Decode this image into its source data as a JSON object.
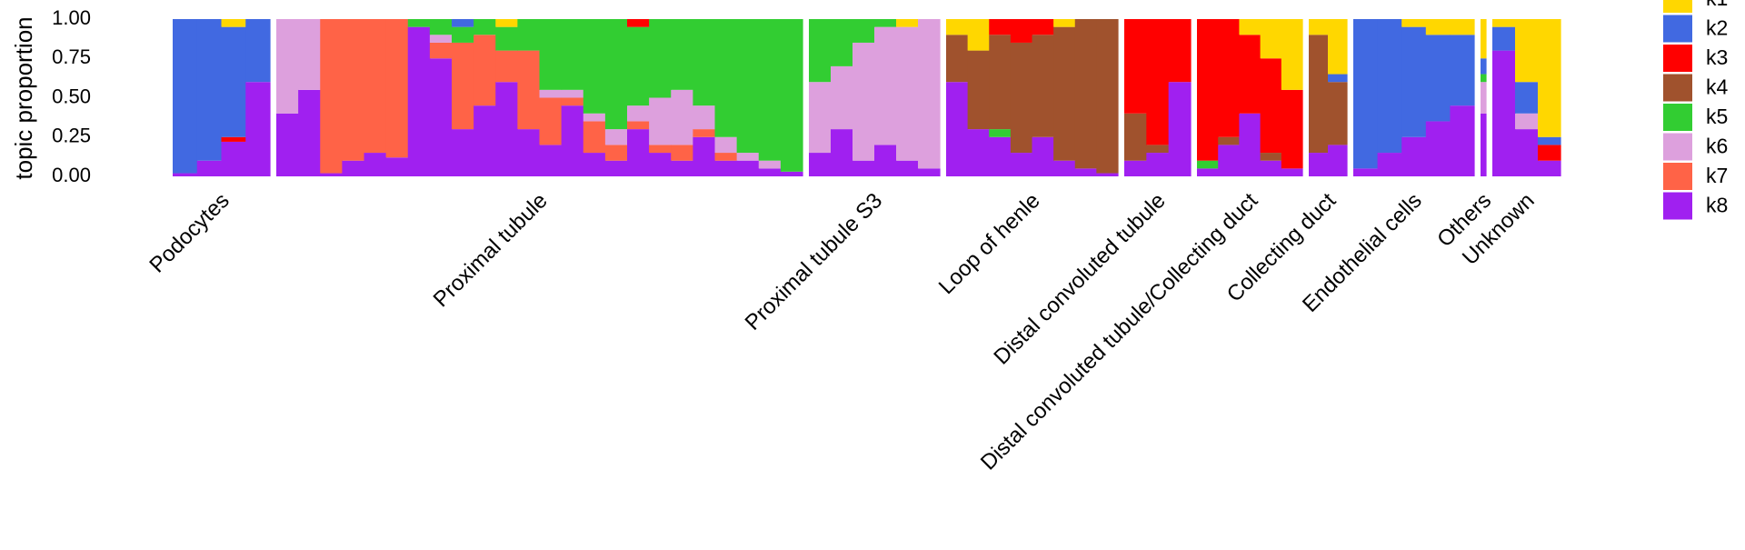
{
  "chart_data": {
    "type": "structure",
    "ylabel": "topic proportion",
    "ylim": [
      0,
      1
    ],
    "yticks": [
      {
        "value": 0,
        "label": "0.00"
      },
      {
        "value": 0.25,
        "label": "0.25"
      },
      {
        "value": 0.5,
        "label": "0.50"
      },
      {
        "value": 0.75,
        "label": "0.75"
      },
      {
        "value": 1,
        "label": "1.00"
      }
    ],
    "series": [
      {
        "name": "k1",
        "color": "#FFD700"
      },
      {
        "name": "k2",
        "color": "#4169E1"
      },
      {
        "name": "k3",
        "color": "#FF0000"
      },
      {
        "name": "k4",
        "color": "#A0522D"
      },
      {
        "name": "k5",
        "color": "#32CD32"
      },
      {
        "name": "k6",
        "color": "#DDA0DD"
      },
      {
        "name": "k7",
        "color": "#FF6347"
      },
      {
        "name": "k8",
        "color": "#A020F0"
      }
    ],
    "groups": [
      {
        "label": "Podocytes",
        "values": [
          [
            0,
            0.98,
            0,
            0,
            0,
            0,
            0,
            0.02
          ],
          [
            0,
            0.9,
            0,
            0,
            0,
            0,
            0,
            0.1
          ],
          [
            0.05,
            0.7,
            0.03,
            0,
            0,
            0,
            0,
            0.22
          ],
          [
            0,
            0.4,
            0,
            0,
            0,
            0,
            0,
            0.6
          ]
        ]
      },
      {
        "label": "Proximal tubule",
        "values": [
          [
            0,
            0,
            0,
            0,
            0,
            0.6,
            0,
            0.4
          ],
          [
            0,
            0,
            0,
            0,
            0,
            0.45,
            0,
            0.55
          ],
          [
            0,
            0,
            0,
            0,
            0,
            0,
            0.98,
            0.02
          ],
          [
            0,
            0,
            0,
            0,
            0,
            0,
            0.9,
            0.1
          ],
          [
            0,
            0,
            0,
            0,
            0,
            0,
            0.85,
            0.15
          ],
          [
            0,
            0,
            0,
            0,
            0,
            0,
            0.88,
            0.12
          ],
          [
            0,
            0,
            0,
            0,
            0.05,
            0,
            0,
            0.95
          ],
          [
            0,
            0,
            0,
            0,
            0.1,
            0.05,
            0.1,
            0.75
          ],
          [
            0,
            0.05,
            0,
            0,
            0.1,
            0,
            0.55,
            0.3
          ],
          [
            0,
            0,
            0,
            0,
            0.1,
            0,
            0.45,
            0.45
          ],
          [
            0.05,
            0,
            0,
            0,
            0.15,
            0,
            0.2,
            0.6
          ],
          [
            0,
            0,
            0,
            0,
            0.2,
            0,
            0.5,
            0.3
          ],
          [
            0,
            0,
            0,
            0,
            0.45,
            0.05,
            0.3,
            0.2
          ],
          [
            0,
            0,
            0,
            0,
            0.45,
            0.05,
            0.05,
            0.45
          ],
          [
            0,
            0,
            0,
            0,
            0.6,
            0.05,
            0.2,
            0.15
          ],
          [
            0,
            0,
            0,
            0,
            0.7,
            0.1,
            0.1,
            0.1
          ],
          [
            0,
            0,
            0.05,
            0,
            0.5,
            0.1,
            0.05,
            0.3
          ],
          [
            0,
            0,
            0,
            0,
            0.5,
            0.3,
            0.05,
            0.15
          ],
          [
            0,
            0,
            0,
            0,
            0.45,
            0.35,
            0.1,
            0.1
          ],
          [
            0,
            0,
            0,
            0,
            0.55,
            0.15,
            0.05,
            0.25
          ],
          [
            0,
            0,
            0,
            0,
            0.75,
            0.1,
            0.05,
            0.1
          ],
          [
            0,
            0,
            0,
            0,
            0.85,
            0.05,
            0,
            0.1
          ],
          [
            0,
            0,
            0,
            0,
            0.9,
            0.05,
            0,
            0.05
          ],
          [
            0,
            0,
            0,
            0,
            0.97,
            0,
            0,
            0.03
          ]
        ]
      },
      {
        "label": "Proximal tubule S3",
        "values": [
          [
            0,
            0,
            0,
            0,
            0.4,
            0.45,
            0,
            0.15
          ],
          [
            0,
            0,
            0,
            0,
            0.3,
            0.4,
            0,
            0.3
          ],
          [
            0,
            0,
            0,
            0,
            0.15,
            0.75,
            0,
            0.1
          ],
          [
            0,
            0,
            0,
            0,
            0.05,
            0.75,
            0,
            0.2
          ],
          [
            0.05,
            0,
            0,
            0,
            0,
            0.85,
            0,
            0.1
          ],
          [
            0,
            0,
            0,
            0,
            0,
            0.95,
            0,
            0.05
          ]
        ]
      },
      {
        "label": "Loop of henle",
        "values": [
          [
            0.1,
            0,
            0,
            0.3,
            0,
            0,
            0,
            0.6
          ],
          [
            0.2,
            0,
            0,
            0.5,
            0,
            0,
            0,
            0.3
          ],
          [
            0,
            0,
            0.1,
            0.6,
            0.05,
            0,
            0,
            0.25
          ],
          [
            0,
            0,
            0.15,
            0.7,
            0,
            0,
            0,
            0.15
          ],
          [
            0,
            0,
            0.1,
            0.65,
            0,
            0,
            0,
            0.25
          ],
          [
            0.05,
            0,
            0,
            0.85,
            0,
            0,
            0,
            0.1
          ],
          [
            0,
            0,
            0,
            0.95,
            0,
            0,
            0,
            0.05
          ],
          [
            0,
            0,
            0,
            0.98,
            0,
            0,
            0,
            0.02
          ]
        ]
      },
      {
        "label": "Distal convoluted tubule",
        "values": [
          [
            0,
            0,
            0.6,
            0.3,
            0,
            0,
            0,
            0.1
          ],
          [
            0,
            0,
            0.8,
            0.05,
            0,
            0,
            0,
            0.15
          ],
          [
            0,
            0,
            0.4,
            0,
            0,
            0,
            0,
            0.6
          ]
        ]
      },
      {
        "label": "Distal convoluted tubule/Collecting duct",
        "values": [
          [
            0,
            0,
            0.9,
            0,
            0.05,
            0,
            0,
            0.05
          ],
          [
            0,
            0,
            0.75,
            0.05,
            0,
            0,
            0,
            0.2
          ],
          [
            0.1,
            0,
            0.5,
            0,
            0,
            0,
            0,
            0.4
          ],
          [
            0.25,
            0,
            0.6,
            0.05,
            0,
            0,
            0,
            0.1
          ],
          [
            0.45,
            0,
            0.5,
            0,
            0,
            0,
            0,
            0.05
          ]
        ]
      },
      {
        "label": "Collecting duct",
        "values": [
          [
            0.1,
            0,
            0,
            0.75,
            0,
            0,
            0,
            0.15
          ],
          [
            0.35,
            0.05,
            0,
            0.4,
            0,
            0,
            0,
            0.2
          ]
        ]
      },
      {
        "label": "Endothelial cells",
        "values": [
          [
            0,
            0.95,
            0,
            0,
            0,
            0,
            0,
            0.05
          ],
          [
            0,
            0.85,
            0,
            0,
            0,
            0,
            0,
            0.15
          ],
          [
            0.05,
            0.7,
            0,
            0,
            0,
            0,
            0,
            0.25
          ],
          [
            0.1,
            0.55,
            0,
            0,
            0,
            0,
            0,
            0.35
          ],
          [
            0.1,
            0.45,
            0,
            0,
            0,
            0,
            0,
            0.45
          ]
        ]
      },
      {
        "label": "Others",
        "values": [
          [
            0.25,
            0.1,
            0,
            0,
            0.05,
            0.2,
            0,
            0.4
          ]
        ]
      },
      {
        "label": "Unknown",
        "values": [
          [
            0.05,
            0.15,
            0,
            0,
            0,
            0,
            0,
            0.8
          ],
          [
            0.4,
            0.2,
            0,
            0,
            0,
            0.1,
            0,
            0.3
          ],
          [
            0.75,
            0.05,
            0.1,
            0,
            0,
            0,
            0,
            0.1
          ]
        ]
      }
    ]
  }
}
